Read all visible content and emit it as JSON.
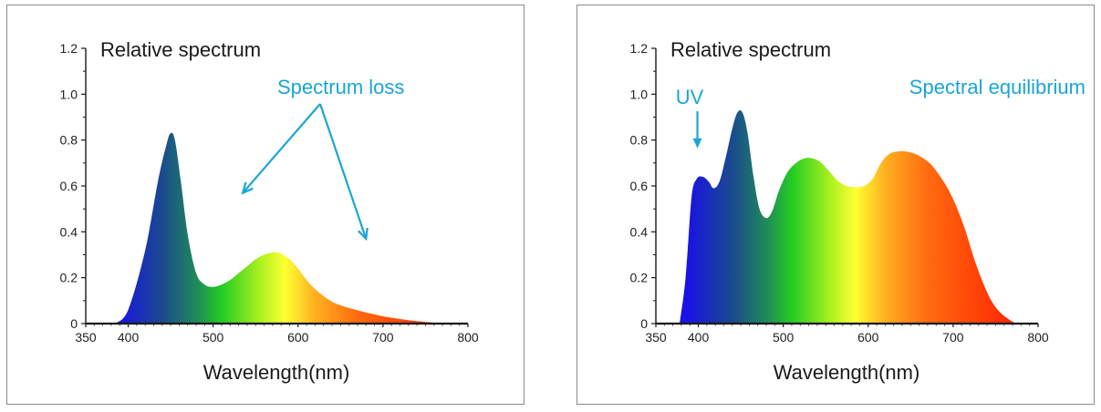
{
  "theme": {
    "annotation_color": "#1aa5d6",
    "axis_color": "#1a1a1a",
    "spectrum_colors": [
      "#1a10e8",
      "#1a4a8e",
      "#1f8a5a",
      "#22cc22",
      "#aaf020",
      "#ffff33",
      "#ffb020",
      "#ff6a10",
      "#ff2000"
    ]
  },
  "chart_data": [
    {
      "type": "area",
      "title": "Relative spectrum",
      "xlabel": "Wavelength(nm)",
      "ylabel": "",
      "xlim": [
        350,
        800
      ],
      "ylim": [
        0,
        1.2
      ],
      "xticks": [
        350,
        400,
        500,
        600,
        700,
        800
      ],
      "yticks": [
        0,
        0.2,
        0.4,
        0.6,
        0.8,
        1.0,
        1.2
      ],
      "ytick_labels": [
        "0",
        "0.2",
        "0.4",
        "0.6",
        "0.8",
        "1.0",
        "1.2"
      ],
      "grid": false,
      "fill": "visible spectrum gradient",
      "annotations": [
        {
          "text": "Spectrum loss",
          "points_to": [
            [
              535,
              0.57
            ],
            [
              680,
              0.37
            ]
          ]
        }
      ],
      "series": [
        {
          "x": [
            385,
            400,
            420,
            435,
            445,
            450,
            455,
            462,
            470,
            480,
            490,
            500,
            510,
            520,
            530,
            540,
            550,
            560,
            570,
            575,
            580,
            590,
            600,
            610,
            620,
            630,
            640,
            650,
            660,
            670,
            680,
            690,
            700,
            720,
            740,
            760,
            780
          ],
          "values": [
            0,
            0.06,
            0.32,
            0.62,
            0.78,
            0.83,
            0.8,
            0.62,
            0.39,
            0.22,
            0.17,
            0.16,
            0.17,
            0.19,
            0.22,
            0.25,
            0.28,
            0.3,
            0.31,
            0.31,
            0.305,
            0.28,
            0.24,
            0.19,
            0.15,
            0.12,
            0.095,
            0.08,
            0.068,
            0.058,
            0.048,
            0.04,
            0.032,
            0.02,
            0.011,
            0.004,
            0
          ]
        }
      ]
    },
    {
      "type": "area",
      "title": "Relative spectrum",
      "xlabel": "Wavelength(nm)",
      "ylabel": "",
      "xlim": [
        350,
        800
      ],
      "ylim": [
        0,
        1.2
      ],
      "xticks": [
        350,
        400,
        500,
        600,
        700,
        800
      ],
      "yticks": [
        0,
        0.2,
        0.4,
        0.6,
        0.8,
        1.0,
        1.2
      ],
      "ytick_labels": [
        "0",
        "0.2",
        "0.4",
        "0.6",
        "0.8",
        "1.0",
        "1.2"
      ],
      "grid": false,
      "fill": "visible spectrum gradient",
      "annotations": [
        {
          "text": "UV",
          "points_to": [
            [
              400,
              0.78
            ]
          ]
        },
        {
          "text": "Spectral equilibrium"
        }
      ],
      "series": [
        {
          "x": [
            378,
            385,
            392,
            398,
            405,
            412,
            418,
            425,
            432,
            440,
            446,
            452,
            458,
            465,
            472,
            480,
            487,
            495,
            505,
            515,
            525,
            535,
            545,
            555,
            565,
            575,
            585,
            595,
            605,
            615,
            625,
            635,
            645,
            655,
            665,
            675,
            685,
            695,
            705,
            715,
            725,
            735,
            745,
            755,
            765,
            772,
            778
          ],
          "values": [
            0,
            0.2,
            0.55,
            0.63,
            0.64,
            0.62,
            0.59,
            0.62,
            0.72,
            0.85,
            0.92,
            0.92,
            0.83,
            0.64,
            0.5,
            0.46,
            0.49,
            0.58,
            0.66,
            0.7,
            0.72,
            0.72,
            0.7,
            0.66,
            0.62,
            0.6,
            0.595,
            0.6,
            0.63,
            0.7,
            0.74,
            0.75,
            0.75,
            0.74,
            0.72,
            0.69,
            0.64,
            0.58,
            0.5,
            0.4,
            0.28,
            0.18,
            0.1,
            0.05,
            0.02,
            0.005,
            0
          ]
        }
      ]
    }
  ]
}
